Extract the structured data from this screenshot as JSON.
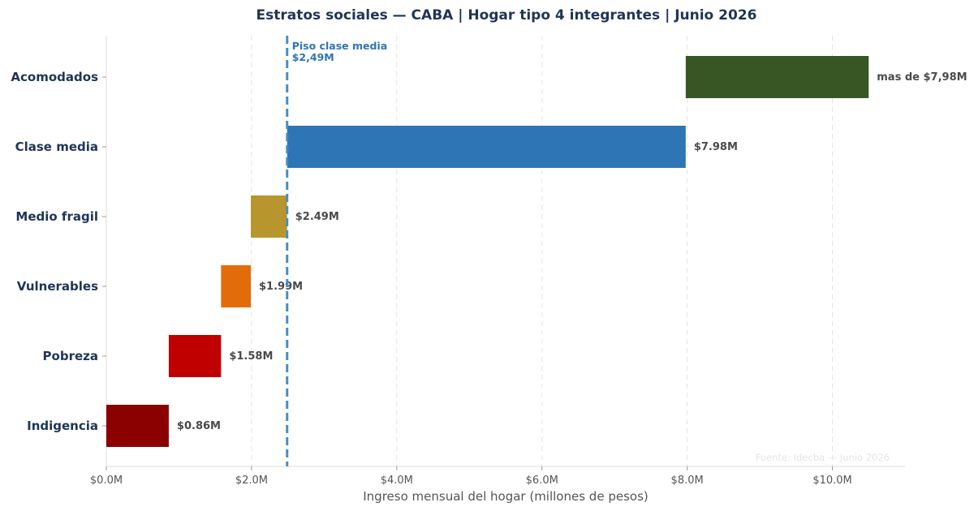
{
  "chart_data": {
    "type": "bar",
    "orientation": "horizontal-floating",
    "title": "Estratos sociales — CABA  |  Hogar tipo 4 integrantes  |  Junio 2026",
    "xlabel": "Ingreso mensual del hogar (millones de pesos)",
    "ylabel": "",
    "xlim": [
      0,
      11
    ],
    "xticks": [
      0,
      2,
      4,
      6,
      8,
      10
    ],
    "xtick_labels": [
      "$0.0M",
      "$2.0M",
      "$4.0M",
      "$6.0M",
      "$8.0M",
      "$10.0M"
    ],
    "grid": "vertical dashed",
    "categories": [
      "Indigencia",
      "Pobreza",
      "Vulnerables",
      "Medio fragil",
      "Clase media",
      "Acomodados"
    ],
    "bars": [
      {
        "category": "Indigencia",
        "start": 0.0,
        "end": 0.86,
        "label": "$0.86M",
        "color": "#8b0000"
      },
      {
        "category": "Pobreza",
        "start": 0.86,
        "end": 1.58,
        "label": "$1.58M",
        "color": "#c00000"
      },
      {
        "category": "Vulnerables",
        "start": 1.58,
        "end": 1.99,
        "label": "$1.99M",
        "color": "#e36c0a"
      },
      {
        "category": "Medio fragil",
        "start": 1.99,
        "end": 2.49,
        "label": "$2.49M",
        "color": "#b8962e"
      },
      {
        "category": "Clase media",
        "start": 2.49,
        "end": 7.98,
        "label": "$7.98M",
        "color": "#2e75b6"
      },
      {
        "category": "Acomodados",
        "start": 7.98,
        "end": 10.5,
        "label": "mas de $7,98M",
        "color": "#375623"
      }
    ],
    "reference_line": {
      "value": 2.49,
      "label_line1": "Piso clase media",
      "label_line2": "$2,49M",
      "color": "#2e75b6",
      "style": "dashed"
    },
    "source_note": "Fuente: Idecba — Junio 2026"
  }
}
